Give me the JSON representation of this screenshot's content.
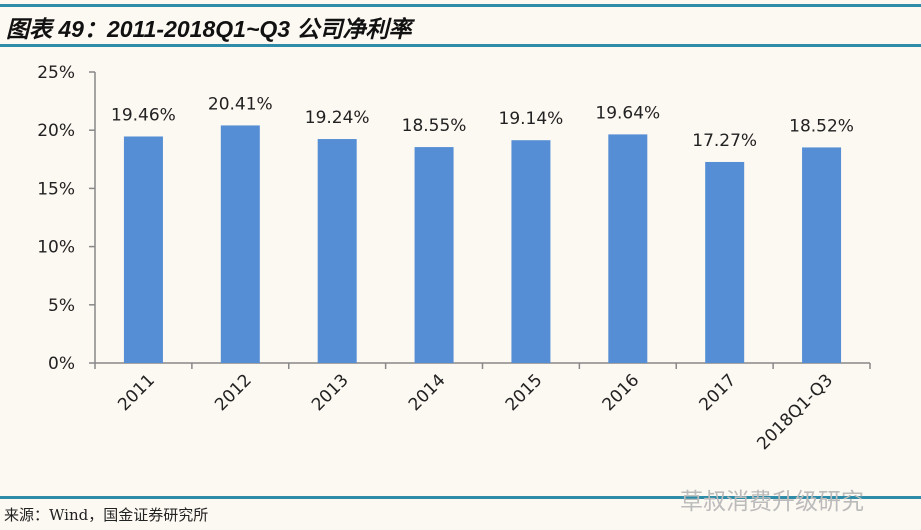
{
  "title": "图表 49：2011-2018Q1~Q3 公司净利率",
  "source": "来源：Wind，国金证券研究所",
  "watermark": "草叔消费升级研究",
  "colors": {
    "bar": "#558ed5",
    "rule": "#2e8ca8",
    "background": "#fcf8f2"
  },
  "chart_data": {
    "type": "bar",
    "categories": [
      "2011",
      "2012",
      "2013",
      "2014",
      "2015",
      "2016",
      "2017",
      "2018Q1-Q3"
    ],
    "values": [
      19.46,
      20.41,
      19.24,
      18.55,
      19.14,
      19.64,
      17.27,
      18.52
    ],
    "data_labels": [
      "19.46%",
      "20.41%",
      "19.24%",
      "18.55%",
      "19.14%",
      "19.64%",
      "17.27%",
      "18.52%"
    ],
    "y_ticks": [
      "0%",
      "5%",
      "10%",
      "15%",
      "20%",
      "25%"
    ],
    "ylim": [
      0,
      25
    ],
    "grid": false,
    "legend": "none",
    "xlabel": "",
    "ylabel": ""
  }
}
